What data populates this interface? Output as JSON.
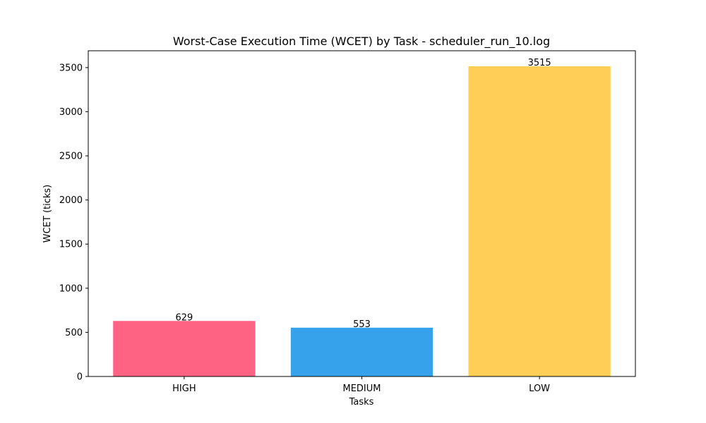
{
  "chart_data": {
    "type": "bar",
    "title": "Worst-Case Execution Time (WCET) by Task - scheduler_run_10.log",
    "xlabel": "Tasks",
    "ylabel": "WCET (ticks)",
    "categories": [
      "HIGH",
      "MEDIUM",
      "LOW"
    ],
    "values": [
      629,
      553,
      3515
    ],
    "value_labels": [
      "629",
      "553",
      "3515"
    ],
    "colors": [
      "#ff6384",
      "#36a2eb",
      "#ffce56"
    ],
    "ylim": [
      0,
      3690.75
    ],
    "yticks": [
      0,
      500,
      1000,
      1500,
      2000,
      2500,
      3000,
      3500
    ],
    "ytick_labels": [
      "0",
      "500",
      "1000",
      "1500",
      "2000",
      "2500",
      "3000",
      "3500"
    ],
    "grid": false,
    "legend": "none"
  }
}
